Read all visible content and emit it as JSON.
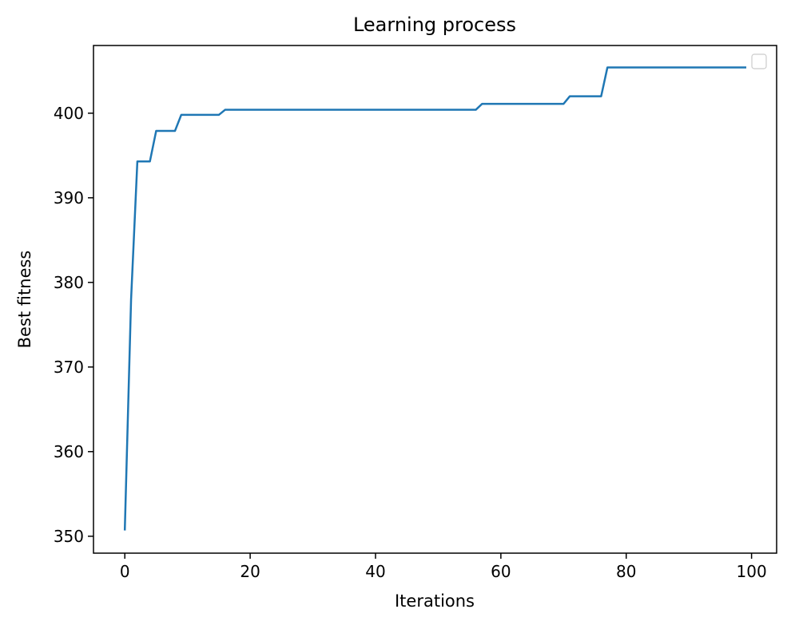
{
  "chart_data": {
    "type": "line",
    "title": "Learning process",
    "xlabel": "Iterations",
    "ylabel": "Best fitness",
    "xlim": [
      -5,
      104
    ],
    "ylim": [
      348,
      408
    ],
    "xticks": [
      0,
      20,
      40,
      60,
      80,
      100
    ],
    "yticks": [
      350,
      360,
      370,
      380,
      390,
      400
    ],
    "grid": false,
    "legend": {
      "placement": "top-right",
      "entries": []
    },
    "series": [
      {
        "color": "#1f77b4",
        "x": [
          0,
          1,
          2,
          4,
          5,
          8,
          9,
          15,
          16,
          56,
          57,
          70,
          71,
          76,
          77,
          99
        ],
        "y": [
          350.8,
          378.0,
          394.3,
          394.3,
          397.9,
          397.9,
          399.8,
          399.8,
          400.4,
          400.4,
          401.1,
          401.1,
          402.0,
          402.0,
          405.4,
          405.4
        ]
      }
    ]
  }
}
